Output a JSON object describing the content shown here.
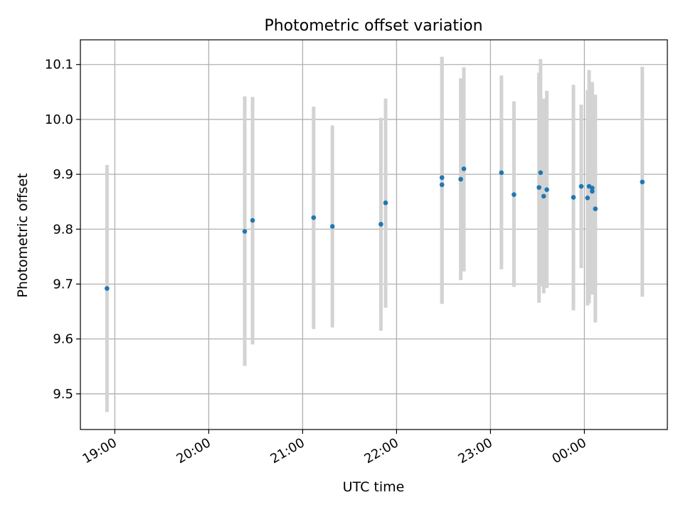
{
  "chart_data": {
    "type": "scatter",
    "title": "Photometric offset variation",
    "xlabel": "UTC time",
    "ylabel": "Photometric offset",
    "x_tick_labels": [
      "19:00",
      "20:00",
      "21:00",
      "22:00",
      "23:00",
      "00:00"
    ],
    "y_tick_labels": [
      "9.5",
      "9.6",
      "9.7",
      "9.8",
      "9.9",
      "10.0",
      "10.1"
    ],
    "y_ticks": [
      9.5,
      9.6,
      9.7,
      9.8,
      9.9,
      10.0,
      10.1
    ],
    "xlim": [
      "18:38",
      "00:53"
    ],
    "ylim": [
      9.435,
      10.145
    ],
    "grid": true,
    "colors": {
      "point": "#1f77b4",
      "errorbar": "#d3d3d3",
      "grid": "#b0b0b0"
    },
    "points": [
      {
        "x": "18:55",
        "y": 9.692,
        "ylow": 9.467,
        "yhigh": 9.917
      },
      {
        "x": "20:23",
        "y": 9.796,
        "ylow": 9.551,
        "yhigh": 10.042
      },
      {
        "x": "20:28",
        "y": 9.816,
        "ylow": 9.59,
        "yhigh": 10.041
      },
      {
        "x": "21:07",
        "y": 9.821,
        "ylow": 9.618,
        "yhigh": 10.023
      },
      {
        "x": "21:19",
        "y": 9.805,
        "ylow": 9.621,
        "yhigh": 9.989
      },
      {
        "x": "21:50",
        "y": 9.809,
        "ylow": 9.615,
        "yhigh": 10.003
      },
      {
        "x": "21:53",
        "y": 9.848,
        "ylow": 9.657,
        "yhigh": 10.038
      },
      {
        "x": "22:29",
        "y": 9.894,
        "ylow": 9.664,
        "yhigh": 10.114
      },
      {
        "x": "22:29",
        "y": 9.881,
        "ylow": 9.664,
        "yhigh": 10.114
      },
      {
        "x": "22:41",
        "y": 9.891,
        "ylow": 9.707,
        "yhigh": 10.075
      },
      {
        "x": "22:43",
        "y": 9.91,
        "ylow": 9.723,
        "yhigh": 10.095
      },
      {
        "x": "23:07",
        "y": 9.903,
        "ylow": 9.727,
        "yhigh": 10.08
      },
      {
        "x": "23:15",
        "y": 9.863,
        "ylow": 9.695,
        "yhigh": 10.033
      },
      {
        "x": "23:31",
        "y": 9.876,
        "ylow": 9.666,
        "yhigh": 10.085
      },
      {
        "x": "23:32",
        "y": 9.903,
        "ylow": 9.696,
        "yhigh": 10.11
      },
      {
        "x": "23:34",
        "y": 9.86,
        "ylow": 9.683,
        "yhigh": 10.038
      },
      {
        "x": "23:36",
        "y": 9.872,
        "ylow": 9.693,
        "yhigh": 10.052
      },
      {
        "x": "23:53",
        "y": 9.858,
        "ylow": 9.652,
        "yhigh": 10.063
      },
      {
        "x": "23:58",
        "y": 9.878,
        "ylow": 9.729,
        "yhigh": 10.027
      },
      {
        "x": "00:02",
        "y": 9.857,
        "ylow": 9.661,
        "yhigh": 10.053
      },
      {
        "x": "00:03",
        "y": 9.878,
        "ylow": 9.665,
        "yhigh": 10.09
      },
      {
        "x": "00:05",
        "y": 9.875,
        "ylow": 9.681,
        "yhigh": 10.068
      },
      {
        "x": "00:05",
        "y": 9.869,
        "ylow": 9.686,
        "yhigh": 10.055
      },
      {
        "x": "00:07",
        "y": 9.837,
        "ylow": 9.63,
        "yhigh": 10.045
      },
      {
        "x": "00:37",
        "y": 9.886,
        "ylow": 9.677,
        "yhigh": 10.096
      }
    ]
  }
}
